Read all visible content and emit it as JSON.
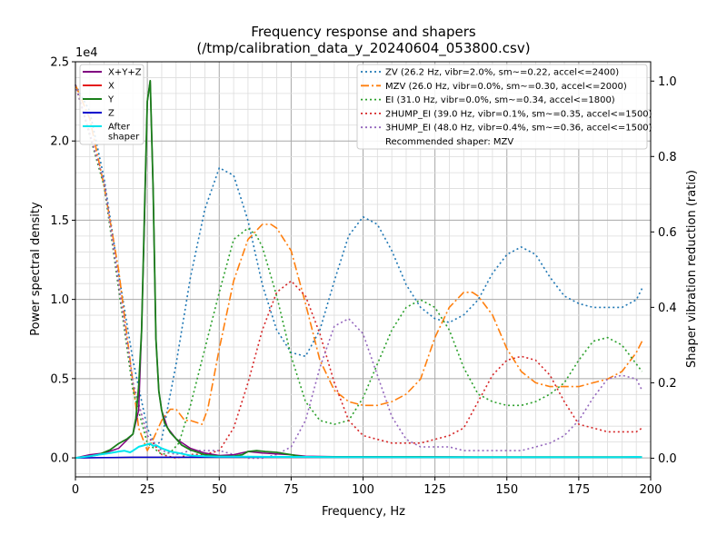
{
  "chart_data": {
    "type": "line",
    "title_line1": "Frequency response and shapers",
    "title_line2": "(/tmp/calibration_data_y_20240604_053800.csv)",
    "xlabel": "Frequency, Hz",
    "ylabel_left": "Power spectral density",
    "ylabel_right": "Shaper vibration reduction (ratio)",
    "y_left_exponent": "1e4",
    "xlim": [
      0,
      200
    ],
    "ylim_left": [
      -0.12,
      2.5
    ],
    "ylim_right": [
      -0.0495,
      1.0512
    ],
    "x_ticks": [
      0,
      25,
      50,
      75,
      100,
      125,
      150,
      175,
      200
    ],
    "x_tick_labels": [
      "0",
      "25",
      "50",
      "75",
      "100",
      "125",
      "150",
      "175",
      "200"
    ],
    "y_left_ticks": [
      0,
      0.5,
      1.0,
      1.5,
      2.0,
      2.5
    ],
    "y_left_tick_labels": [
      "0.0",
      "0.5",
      "1.0",
      "1.5",
      "2.0",
      "2.5"
    ],
    "y_right_ticks": [
      0,
      0.2,
      0.4,
      0.6,
      0.8,
      1.0
    ],
    "y_right_tick_labels": [
      "0.0",
      "0.2",
      "0.4",
      "0.6",
      "0.8",
      "1.0"
    ],
    "grid": true,
    "psd_legend_placement": "upper-left",
    "shaper_legend_placement": "upper-right",
    "psd_series": [
      {
        "name": "X+Y+Z",
        "color": "#800080",
        "style": "solid",
        "width": 1.5,
        "x": [
          0,
          5,
          10,
          15,
          20,
          22,
          23,
          24,
          25,
          26,
          27,
          28,
          29,
          30,
          32,
          35,
          40,
          45,
          50,
          55,
          60,
          65,
          70,
          75,
          80,
          90,
          100,
          110,
          120,
          130,
          140,
          150,
          160,
          170,
          180,
          190,
          195,
          197
        ],
        "y": [
          0,
          0.02,
          0.03,
          0.06,
          0.15,
          0.3,
          0.8,
          1.5,
          2.25,
          2.38,
          1.7,
          0.75,
          0.42,
          0.3,
          0.19,
          0.12,
          0.06,
          0.03,
          0.015,
          0.02,
          0.04,
          0.03,
          0.025,
          0.02,
          0.01,
          0.008,
          0.007,
          0.006,
          0.006,
          0.006,
          0.005,
          0.005,
          0.005,
          0.005,
          0.005,
          0.005,
          0.005,
          0.005
        ]
      },
      {
        "name": "X",
        "color": "#e41a1c",
        "style": "solid",
        "width": 1.2,
        "x": [
          0,
          20,
          40,
          60,
          80,
          100,
          120,
          140,
          160,
          180,
          197
        ],
        "y": [
          0,
          0.004,
          0.004,
          0.004,
          0.004,
          0.004,
          0.004,
          0.004,
          0.004,
          0.004,
          0.004
        ]
      },
      {
        "name": "Y",
        "color": "#1a7f1a",
        "style": "solid",
        "width": 1.8,
        "x": [
          0,
          5,
          8,
          12,
          15,
          18,
          20,
          21,
          22,
          23,
          24,
          25,
          26,
          27,
          28,
          29,
          30,
          31,
          32,
          33,
          35,
          37,
          40,
          45,
          50,
          55,
          58,
          60,
          63,
          66,
          70,
          75,
          78,
          80,
          90,
          100,
          110,
          120,
          130,
          140,
          150,
          160,
          170,
          180,
          190,
          195,
          197
        ],
        "y": [
          0,
          0.01,
          0.02,
          0.05,
          0.09,
          0.12,
          0.15,
          0.25,
          0.45,
          0.8,
          1.55,
          2.25,
          2.38,
          1.7,
          0.75,
          0.42,
          0.3,
          0.22,
          0.19,
          0.16,
          0.12,
          0.08,
          0.05,
          0.02,
          0.01,
          0.01,
          0.02,
          0.04,
          0.045,
          0.04,
          0.035,
          0.02,
          0.01,
          0.006,
          0.006,
          0.006,
          0.006,
          0.006,
          0.005,
          0.005,
          0.005,
          0.005,
          0.005,
          0.005,
          0.005,
          0.005,
          0.005
        ]
      },
      {
        "name": "Z",
        "color": "#0000cd",
        "style": "solid",
        "width": 1.5,
        "x": [
          0,
          20,
          40,
          60,
          80,
          100,
          120,
          140,
          160,
          180,
          197
        ],
        "y": [
          0,
          0.004,
          0.004,
          0.004,
          0.004,
          0.004,
          0.004,
          0.004,
          0.004,
          0.004,
          0.004
        ]
      },
      {
        "name": "After\nshaper",
        "color": "#00e5ee",
        "style": "solid",
        "width": 2.0,
        "x": [
          0,
          5,
          8,
          10,
          12,
          15,
          17,
          19,
          20,
          22,
          24,
          25,
          26,
          27,
          28,
          30,
          33,
          36,
          40,
          45,
          50,
          60,
          70,
          80,
          90,
          100,
          120,
          140,
          160,
          180,
          190,
          195,
          197
        ],
        "y": [
          0,
          0.01,
          0.02,
          0.025,
          0.03,
          0.04,
          0.045,
          0.035,
          0.045,
          0.07,
          0.08,
          0.085,
          0.09,
          0.075,
          0.08,
          0.06,
          0.04,
          0.03,
          0.015,
          0.01,
          0.008,
          0.008,
          0.006,
          0.006,
          0.005,
          0.005,
          0.004,
          0.004,
          0.004,
          0.004,
          0.004,
          0.006,
          0.004
        ]
      }
    ],
    "shaper_series": [
      {
        "name": "ZV (26.2 Hz, vibr=2.0%, sm~=0.22, accel<=2400)",
        "color": "#1f77b4",
        "style": "dotted",
        "x": [
          0,
          5,
          10,
          15,
          20,
          25,
          28,
          30,
          35,
          40,
          45,
          50,
          55,
          60,
          65,
          70,
          75,
          80,
          85,
          90,
          95,
          100,
          105,
          110,
          115,
          120,
          125,
          130,
          135,
          140,
          145,
          150,
          155,
          160,
          165,
          170,
          175,
          180,
          185,
          190,
          195,
          197
        ],
        "y": [
          0.99,
          0.92,
          0.74,
          0.49,
          0.26,
          0.08,
          0.03,
          0.05,
          0.25,
          0.48,
          0.66,
          0.77,
          0.75,
          0.63,
          0.46,
          0.34,
          0.28,
          0.27,
          0.34,
          0.47,
          0.59,
          0.64,
          0.62,
          0.55,
          0.46,
          0.4,
          0.37,
          0.36,
          0.38,
          0.42,
          0.49,
          0.54,
          0.56,
          0.54,
          0.48,
          0.43,
          0.41,
          0.4,
          0.4,
          0.4,
          0.42,
          0.45
        ]
      },
      {
        "name": "MZV (26.0 Hz, vibr=0.0%, sm~=0.30, accel<=2000)",
        "color": "#ff7f0e",
        "style": "dashdot",
        "x": [
          0,
          5,
          10,
          15,
          20,
          22,
          25,
          27,
          30,
          33,
          35,
          38,
          40,
          44,
          46,
          50,
          55,
          60,
          65,
          68,
          70,
          75,
          80,
          85,
          90,
          95,
          100,
          105,
          110,
          115,
          120,
          125,
          130,
          135,
          138,
          140,
          145,
          150,
          155,
          160,
          165,
          170,
          175,
          180,
          185,
          190,
          195,
          197
        ],
        "y": [
          0.99,
          0.9,
          0.72,
          0.5,
          0.2,
          0.08,
          0.02,
          0.05,
          0.1,
          0.13,
          0.13,
          0.1,
          0.1,
          0.09,
          0.13,
          0.29,
          0.47,
          0.58,
          0.62,
          0.62,
          0.61,
          0.55,
          0.41,
          0.26,
          0.18,
          0.15,
          0.14,
          0.14,
          0.15,
          0.17,
          0.21,
          0.32,
          0.4,
          0.44,
          0.44,
          0.43,
          0.38,
          0.29,
          0.23,
          0.2,
          0.19,
          0.19,
          0.19,
          0.2,
          0.21,
          0.23,
          0.28,
          0.31
        ]
      },
      {
        "name": "EI (31.0 Hz, vibr=0.0%, sm~=0.34, accel<=1800)",
        "color": "#2ca02c",
        "style": "dotted",
        "x": [
          0,
          10,
          20,
          25,
          30,
          33,
          36,
          40,
          45,
          50,
          55,
          60,
          63,
          65,
          70,
          75,
          80,
          85,
          90,
          95,
          100,
          105,
          110,
          115,
          120,
          125,
          130,
          135,
          140,
          145,
          150,
          155,
          160,
          165,
          170,
          175,
          180,
          185,
          190,
          195,
          197
        ],
        "y": [
          0.99,
          0.72,
          0.18,
          0.04,
          0.01,
          0.015,
          0.04,
          0.14,
          0.29,
          0.44,
          0.58,
          0.61,
          0.59,
          0.56,
          0.43,
          0.27,
          0.15,
          0.1,
          0.09,
          0.1,
          0.16,
          0.25,
          0.34,
          0.4,
          0.42,
          0.4,
          0.34,
          0.24,
          0.17,
          0.15,
          0.14,
          0.14,
          0.15,
          0.17,
          0.2,
          0.26,
          0.31,
          0.32,
          0.3,
          0.25,
          0.23
        ]
      },
      {
        "name": "2HUMP_EI (39.0 Hz, vibr=0.1%, sm~=0.35, accel<=1500)",
        "color": "#d62728",
        "style": "dotted",
        "x": [
          0,
          10,
          20,
          25,
          30,
          35,
          40,
          45,
          50,
          55,
          60,
          65,
          70,
          75,
          80,
          85,
          90,
          95,
          100,
          105,
          110,
          115,
          120,
          125,
          130,
          135,
          140,
          145,
          150,
          155,
          160,
          165,
          170,
          175,
          180,
          185,
          190,
          195,
          197
        ],
        "y": [
          0.99,
          0.73,
          0.2,
          0.06,
          0.01,
          0.0,
          0.01,
          0.01,
          0.02,
          0.08,
          0.2,
          0.34,
          0.44,
          0.47,
          0.43,
          0.33,
          0.2,
          0.1,
          0.06,
          0.05,
          0.04,
          0.04,
          0.04,
          0.05,
          0.06,
          0.08,
          0.15,
          0.22,
          0.26,
          0.27,
          0.26,
          0.22,
          0.15,
          0.09,
          0.08,
          0.07,
          0.07,
          0.07,
          0.08
        ]
      },
      {
        "name": "3HUMP_EI (48.0 Hz, vibr=0.4%, sm~=0.36, accel<=1500)",
        "color": "#9467bd",
        "style": "dotted",
        "x": [
          0,
          10,
          20,
          25,
          30,
          35,
          40,
          45,
          50,
          55,
          60,
          65,
          70,
          75,
          80,
          85,
          90,
          95,
          100,
          105,
          110,
          115,
          120,
          125,
          130,
          135,
          140,
          145,
          150,
          155,
          160,
          165,
          170,
          175,
          180,
          185,
          190,
          195,
          197
        ],
        "y": [
          0.99,
          0.73,
          0.2,
          0.06,
          0.02,
          0.01,
          0.02,
          0.02,
          0.02,
          0.01,
          0.0,
          0.0,
          0.01,
          0.03,
          0.1,
          0.24,
          0.35,
          0.37,
          0.33,
          0.22,
          0.11,
          0.05,
          0.03,
          0.03,
          0.03,
          0.02,
          0.02,
          0.02,
          0.02,
          0.02,
          0.03,
          0.04,
          0.06,
          0.1,
          0.16,
          0.21,
          0.22,
          0.21,
          0.18
        ]
      }
    ],
    "recommended_text": "Recommended shaper: MZV"
  }
}
